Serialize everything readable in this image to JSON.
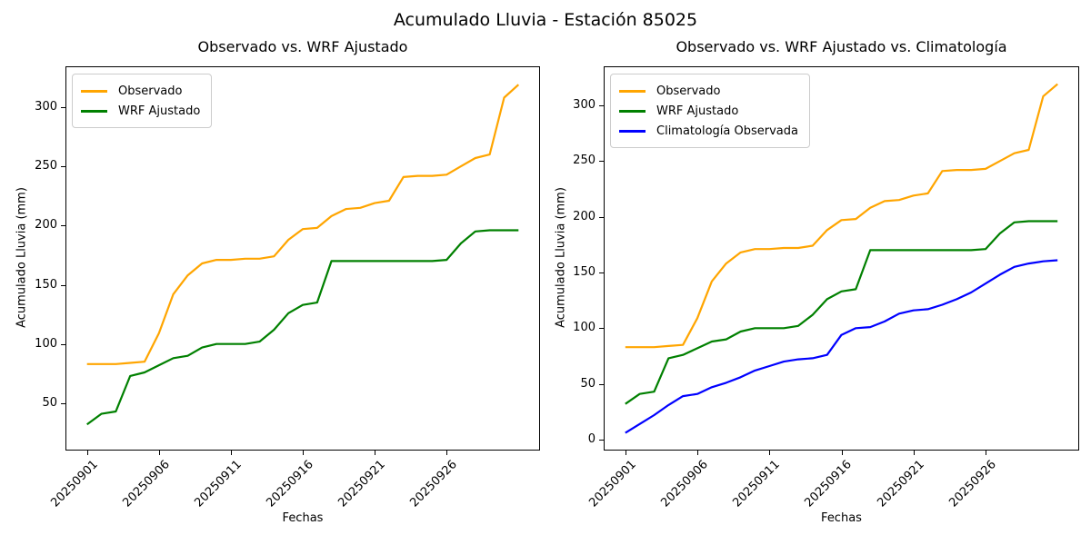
{
  "figure": {
    "title": "Acumulado Lluvia - Estación 85025",
    "background": "#ffffff"
  },
  "chart_data": [
    {
      "type": "line",
      "title": "Observado vs. WRF Ajustado",
      "xlabel": "Fechas",
      "ylabel": "Acumulado Lluvia (mm)",
      "x_dates": [
        "20250901",
        "20250902",
        "20250903",
        "20250904",
        "20250905",
        "20250906",
        "20250907",
        "20250908",
        "20250909",
        "20250910",
        "20250911",
        "20250912",
        "20250913",
        "20250914",
        "20250915",
        "20250916",
        "20250917",
        "20250918",
        "20250919",
        "20250920",
        "20250921",
        "20250922",
        "20250923",
        "20250924",
        "20250925",
        "20250926",
        "20250927",
        "20250928",
        "20250929",
        "20250930",
        "20251001"
      ],
      "x_tick_indices": [
        0,
        5,
        10,
        15,
        20,
        25
      ],
      "x_tick_labels": [
        "20250901",
        "20250906",
        "20250911",
        "20250916",
        "20250921",
        "20250926"
      ],
      "y_ticks": [
        50,
        100,
        150,
        200,
        250,
        300
      ],
      "xlim_day_index": [
        -1.5,
        31.5
      ],
      "ylim": [
        10,
        334.5
      ],
      "grid": false,
      "legend_position": "upper-left",
      "series": [
        {
          "name": "Observado",
          "color": "#ffa500",
          "values": [
            83,
            83,
            83,
            84,
            85,
            109,
            142,
            158,
            168,
            171,
            171,
            172,
            172,
            174,
            188,
            197,
            198,
            208,
            214,
            215,
            219,
            221,
            241,
            242,
            242,
            243,
            250,
            257,
            260,
            308,
            319
          ]
        },
        {
          "name": "WRF Ajustado",
          "color": "#008000",
          "values": [
            32,
            41,
            43,
            73,
            76,
            82,
            88,
            90,
            97,
            100,
            100,
            100,
            102,
            112,
            126,
            133,
            135,
            170,
            170,
            170,
            170,
            170,
            170,
            170,
            170,
            171,
            185,
            195,
            196,
            196,
            196
          ]
        }
      ]
    },
    {
      "type": "line",
      "title": "Observado vs. WRF Ajustado vs. Climatología",
      "xlabel": "Fechas",
      "ylabel": "Acumulado Lluvia (mm)",
      "x_dates": [
        "20250901",
        "20250902",
        "20250903",
        "20250904",
        "20250905",
        "20250906",
        "20250907",
        "20250908",
        "20250909",
        "20250910",
        "20250911",
        "20250912",
        "20250913",
        "20250914",
        "20250915",
        "20250916",
        "20250917",
        "20250918",
        "20250919",
        "20250920",
        "20250921",
        "20250922",
        "20250923",
        "20250924",
        "20250925",
        "20250926",
        "20250927",
        "20250928",
        "20250929",
        "20250930",
        "20251001"
      ],
      "x_tick_indices": [
        0,
        5,
        10,
        15,
        20,
        25
      ],
      "x_tick_labels": [
        "20250901",
        "20250906",
        "20250911",
        "20250916",
        "20250921",
        "20250926"
      ],
      "y_ticks": [
        0,
        50,
        100,
        150,
        200,
        250,
        300
      ],
      "xlim_day_index": [
        -1.5,
        31.5
      ],
      "ylim": [
        -9.8,
        335
      ],
      "grid": false,
      "legend_position": "upper-left",
      "series": [
        {
          "name": "Observado",
          "color": "#ffa500",
          "values": [
            83,
            83,
            83,
            84,
            85,
            109,
            142,
            158,
            168,
            171,
            171,
            172,
            172,
            174,
            188,
            197,
            198,
            208,
            214,
            215,
            219,
            221,
            241,
            242,
            242,
            243,
            250,
            257,
            260,
            308,
            319
          ]
        },
        {
          "name": "WRF Ajustado",
          "color": "#008000",
          "values": [
            32,
            41,
            43,
            73,
            76,
            82,
            88,
            90,
            97,
            100,
            100,
            100,
            102,
            112,
            126,
            133,
            135,
            170,
            170,
            170,
            170,
            170,
            170,
            170,
            170,
            171,
            185,
            195,
            196,
            196,
            196
          ]
        },
        {
          "name": "Climatología Observada",
          "color": "#0000ff",
          "values": [
            6,
            14,
            22,
            31,
            39,
            41,
            47,
            51,
            56,
            62,
            66,
            70,
            72,
            73,
            76,
            94,
            100,
            101,
            106,
            113,
            116,
            117,
            121,
            126,
            132,
            140,
            148,
            155,
            158,
            160,
            161
          ]
        }
      ]
    }
  ]
}
